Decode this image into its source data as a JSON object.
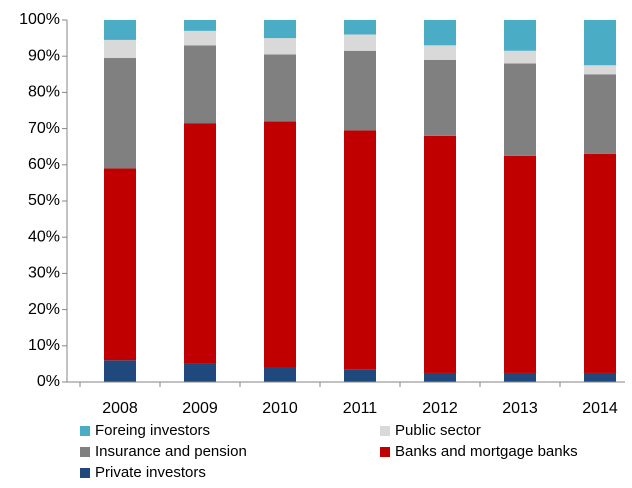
{
  "chart_data": {
    "type": "stacked_bar",
    "categories": [
      "2008",
      "2009",
      "2010",
      "2011",
      "2012",
      "2013",
      "2014"
    ],
    "series": [
      {
        "name": "Private investors",
        "color": "#1f497d",
        "values": [
          6,
          5,
          4,
          3.5,
          2.5,
          2.5,
          2.5
        ]
      },
      {
        "name": "Banks and mortgage banks",
        "color": "#c00000",
        "values": [
          53,
          66.5,
          68,
          66,
          65.5,
          60,
          60.5
        ]
      },
      {
        "name": "Insurance and pension",
        "color": "#808080",
        "values": [
          30.5,
          21.5,
          18.5,
          22,
          21,
          25.5,
          22
        ]
      },
      {
        "name": "Public sector",
        "color": "#d9d9d9",
        "values": [
          5,
          4,
          4.5,
          4.5,
          4,
          3.5,
          2.5
        ]
      },
      {
        "name": "Foreing investors",
        "color": "#4bacc6",
        "values": [
          5.5,
          3,
          5,
          4,
          7,
          8.5,
          12.5
        ]
      }
    ],
    "ylim": [
      0,
      100
    ],
    "yticks": [
      {
        "value": 0,
        "label": "0%"
      },
      {
        "value": 10,
        "label": "10%"
      },
      {
        "value": 20,
        "label": "20%"
      },
      {
        "value": 30,
        "label": "30%"
      },
      {
        "value": 40,
        "label": "40%"
      },
      {
        "value": 50,
        "label": "50%"
      },
      {
        "value": 60,
        "label": "60%"
      },
      {
        "value": 70,
        "label": "70%"
      },
      {
        "value": 80,
        "label": "80%"
      },
      {
        "value": 90,
        "label": "90%"
      },
      {
        "value": 100,
        "label": "100%"
      }
    ]
  }
}
